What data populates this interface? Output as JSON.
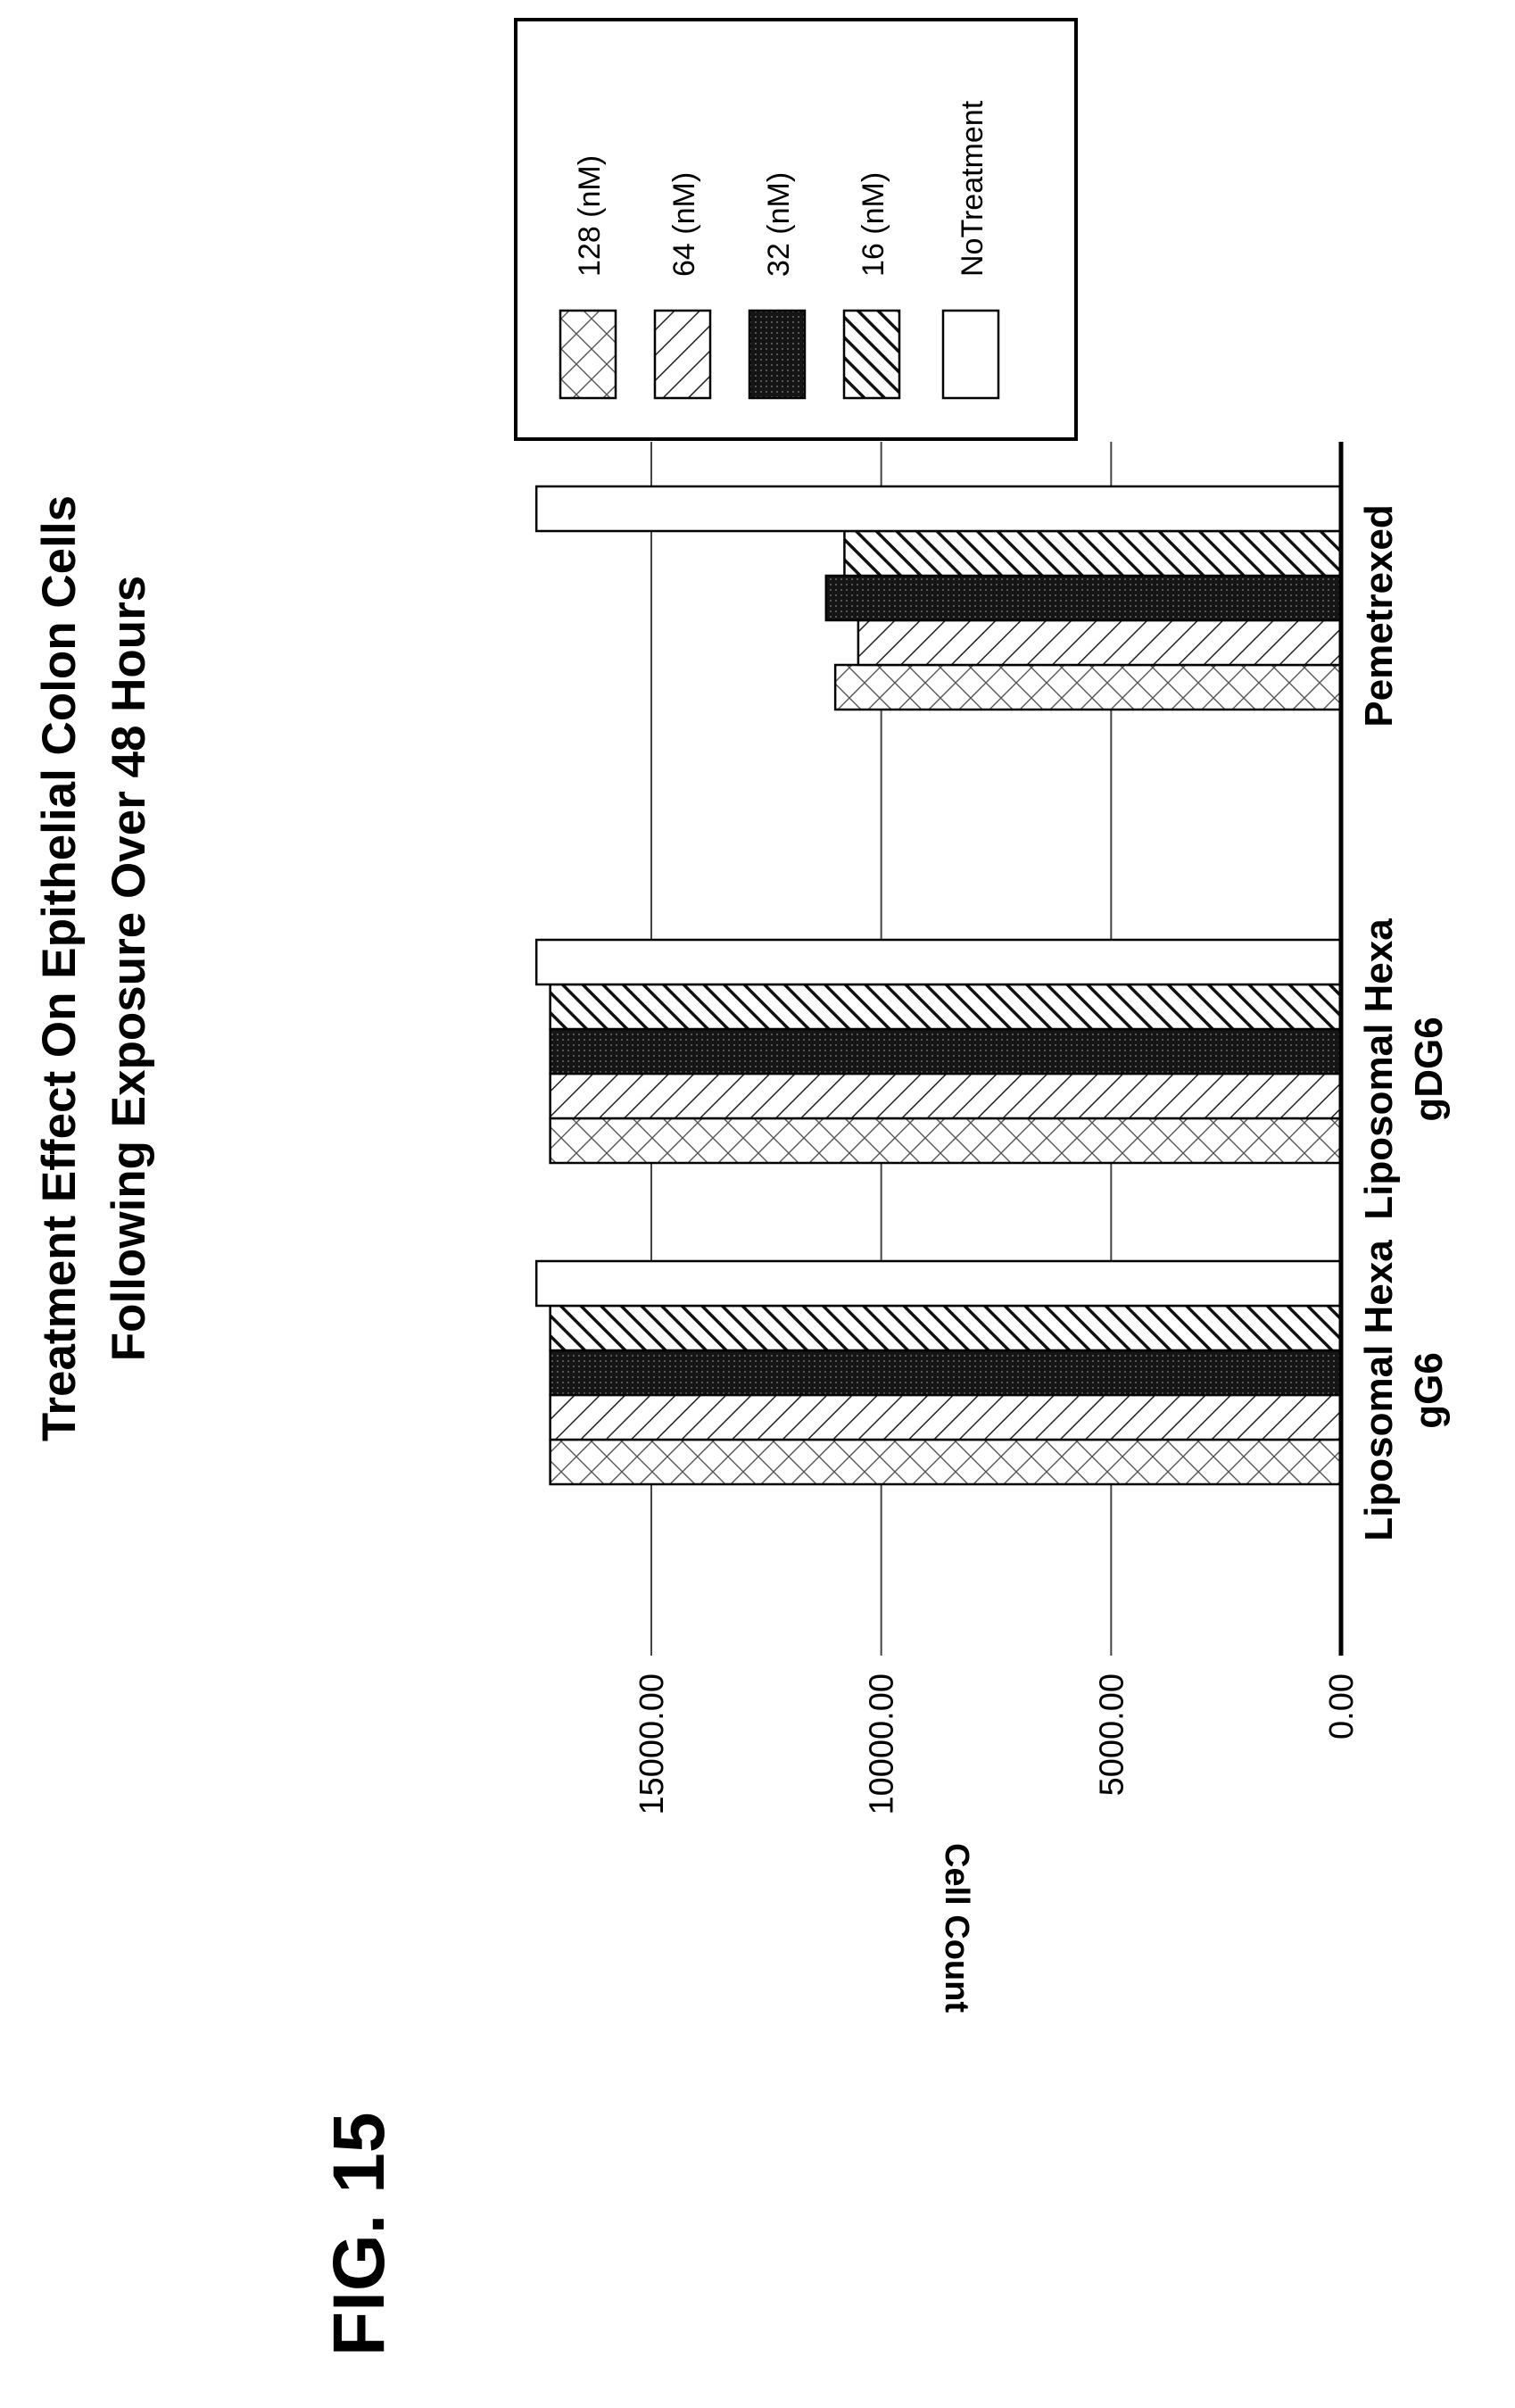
{
  "figure_label": "FIG. 15",
  "chart_data": {
    "type": "bar",
    "orientation": "vertical (page rotated 90° counter-clockwise)",
    "title": [
      "Treatment Effect On Epithelial Colon Cells",
      "Following Exposure Over 48 Hours"
    ],
    "ylabel": "Cell Count",
    "xlabel": "",
    "ylim": [
      0,
      17500
    ],
    "yticks": [
      "0.00",
      "5000.00",
      "10000.00",
      "15000.00"
    ],
    "ytick_values": [
      0,
      5000,
      10000,
      15000
    ],
    "grid": true,
    "legend_position": "top-right",
    "categories": [
      [
        "Liposomal Hexa",
        "gG6"
      ],
      [
        "Liposomal Hexa",
        "gDG6"
      ],
      [
        "Pemetrexed"
      ]
    ],
    "series": [
      {
        "name": "128 (nM)",
        "pattern": "crosshatch",
        "values": [
          17200,
          17200,
          11000
        ]
      },
      {
        "name": "64 (nM)",
        "pattern": "diagonal",
        "values": [
          17200,
          17200,
          10500
        ]
      },
      {
        "name": "32 (nM)",
        "pattern": "solid-dark",
        "values": [
          17200,
          17200,
          11200
        ]
      },
      {
        "name": "16 (nM)",
        "pattern": "back-diagonal",
        "values": [
          17200,
          17200,
          10800
        ]
      },
      {
        "name": "NoTreatment",
        "pattern": "white",
        "values": [
          17500,
          17500,
          17500
        ]
      }
    ]
  }
}
